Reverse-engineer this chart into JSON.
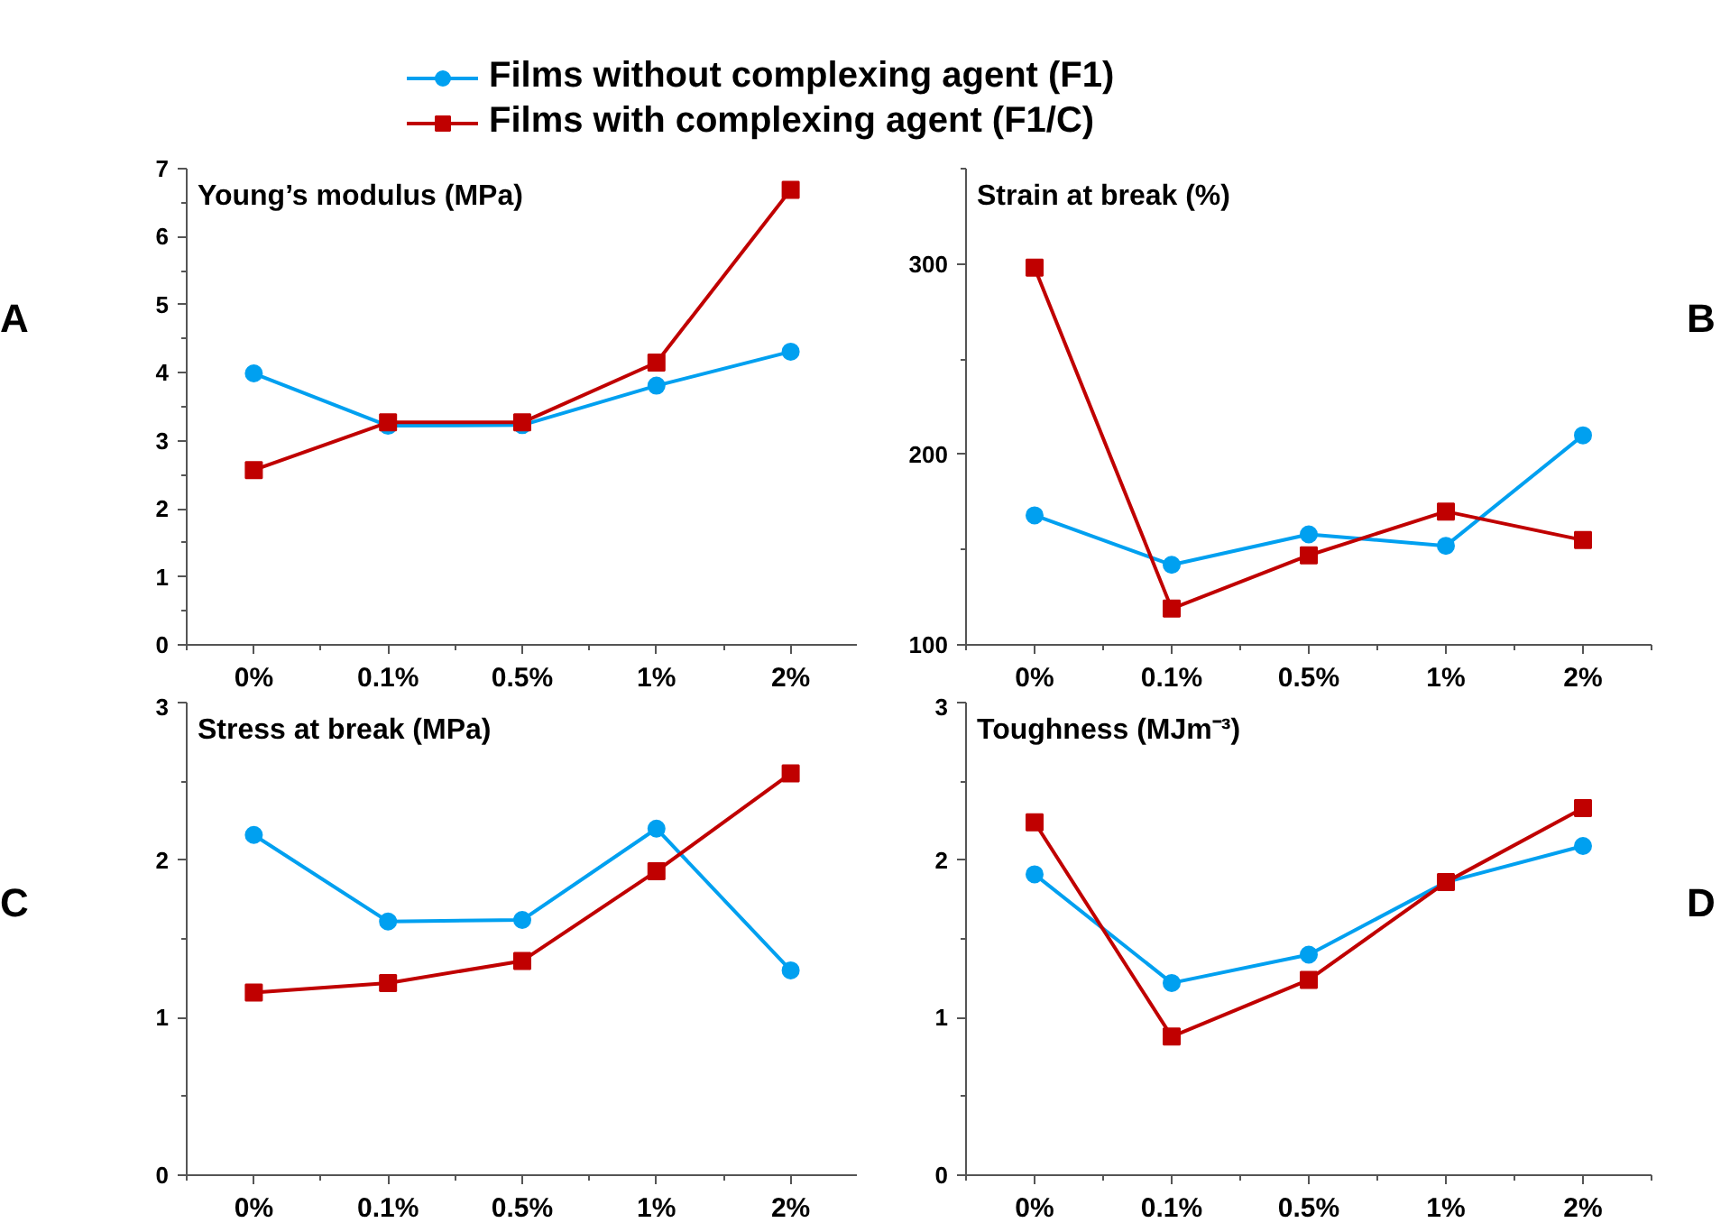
{
  "chart_data": [
    {
      "type": "line",
      "title": "Young’s modulus (MPa)",
      "annotations": [
        "A"
      ],
      "categories": [
        "0%",
        "0.1%",
        "0.5%",
        "1%",
        "2%"
      ],
      "ylim": [
        0,
        7
      ],
      "yticks": [
        0,
        1,
        2,
        3,
        4,
        5,
        6,
        7
      ],
      "legend": "top",
      "grid": false,
      "series": [
        {
          "name": "Films without complexing agent (F1)",
          "color": "#00a0f0",
          "marker": "circle",
          "values": [
            3.99,
            3.22,
            3.23,
            3.81,
            4.31
          ]
        },
        {
          "name": "Films with complexing agent (F1/C)",
          "color": "#c00000",
          "marker": "square",
          "values": [
            2.57,
            3.27,
            3.27,
            4.15,
            6.69
          ]
        }
      ]
    },
    {
      "type": "line",
      "title": "Strain at break (%)",
      "annotations": [
        "B"
      ],
      "categories": [
        "0%",
        "0.1%",
        "0.5%",
        "1%",
        "2%"
      ],
      "ylim": [
        100,
        350
      ],
      "yticks": [
        100,
        200,
        300
      ],
      "grid": false,
      "series": [
        {
          "color": "#00a0f0",
          "marker": "circle",
          "values": [
            168,
            142,
            158,
            152,
            210
          ]
        },
        {
          "color": "#c00000",
          "marker": "square",
          "values": [
            298,
            119,
            147,
            170,
            155
          ]
        }
      ]
    },
    {
      "type": "line",
      "title": "Stress at break (MPa)",
      "annotations": [
        "C"
      ],
      "categories": [
        "0%",
        "0.1%",
        "0.5%",
        "1%",
        "2%"
      ],
      "ylim": [
        0,
        3
      ],
      "yticks": [
        0,
        1,
        2,
        3
      ],
      "grid": false,
      "series": [
        {
          "color": "#00a0f0",
          "marker": "circle",
          "values": [
            2.16,
            1.61,
            1.62,
            2.2,
            1.3
          ]
        },
        {
          "color": "#c00000",
          "marker": "square",
          "values": [
            1.16,
            1.22,
            1.36,
            1.93,
            2.55
          ]
        }
      ]
    },
    {
      "type": "line",
      "title": "Toughness (MJm⁻³)",
      "annotations": [
        "D"
      ],
      "categories": [
        "0%",
        "0.1%",
        "0.5%",
        "1%",
        "2%"
      ],
      "ylim": [
        0,
        3
      ],
      "yticks": [
        0,
        1,
        2,
        3
      ],
      "grid": false,
      "series": [
        {
          "color": "#00a0f0",
          "marker": "circle",
          "values": [
            1.91,
            1.22,
            1.4,
            1.86,
            2.09
          ]
        },
        {
          "color": "#c00000",
          "marker": "square",
          "values": [
            2.24,
            0.88,
            1.24,
            1.86,
            2.33
          ]
        }
      ]
    }
  ]
}
